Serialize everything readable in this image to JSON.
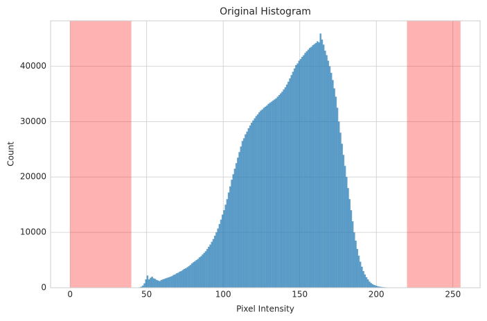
{
  "chart_data": {
    "type": "histogram",
    "title": "Original Histogram",
    "x_label": "Pixel Intensity",
    "y_label": "Count",
    "bins": [
      0,
      1,
      2,
      3,
      4,
      5,
      6,
      7,
      8,
      9,
      10,
      11,
      12,
      13,
      14,
      15,
      16,
      17,
      18,
      19,
      20,
      21,
      22,
      23,
      24,
      25,
      26,
      27,
      28,
      29,
      30,
      31,
      32,
      33,
      34,
      35,
      36,
      37,
      38,
      39,
      40,
      41,
      42,
      43,
      44,
      45,
      46,
      47,
      48,
      49,
      50,
      51,
      52,
      53,
      54,
      55,
      56,
      57,
      58,
      59,
      60,
      61,
      62,
      63,
      64,
      65,
      66,
      67,
      68,
      69,
      70,
      71,
      72,
      73,
      74,
      75,
      76,
      77,
      78,
      79,
      80,
      81,
      82,
      83,
      84,
      85,
      86,
      87,
      88,
      89,
      90,
      91,
      92,
      93,
      94,
      95,
      96,
      97,
      98,
      99,
      100,
      101,
      102,
      103,
      104,
      105,
      106,
      107,
      108,
      109,
      110,
      111,
      112,
      113,
      114,
      115,
      116,
      117,
      118,
      119,
      120,
      121,
      122,
      123,
      124,
      125,
      126,
      127,
      128,
      129,
      130,
      131,
      132,
      133,
      134,
      135,
      136,
      137,
      138,
      139,
      140,
      141,
      142,
      143,
      144,
      145,
      146,
      147,
      148,
      149,
      150,
      151,
      152,
      153,
      154,
      155,
      156,
      157,
      158,
      159,
      160,
      161,
      162,
      163,
      164,
      165,
      166,
      167,
      168,
      169,
      170,
      171,
      172,
      173,
      174,
      175,
      176,
      177,
      178,
      179,
      180,
      181,
      182,
      183,
      184,
      185,
      186,
      187,
      188,
      189,
      190,
      191,
      192,
      193,
      194,
      195,
      196,
      197,
      198,
      199,
      200,
      201,
      202,
      203,
      204,
      205,
      206,
      207,
      208,
      209,
      210,
      211,
      212,
      213,
      214,
      215,
      216,
      217,
      218,
      219,
      220,
      221,
      222,
      223,
      224,
      225,
      226,
      227,
      228,
      229,
      230,
      231,
      232,
      233,
      234,
      235,
      236,
      237,
      238,
      239,
      240,
      241,
      242,
      243,
      244,
      245,
      246,
      247,
      248,
      249,
      250,
      251,
      252,
      253,
      254,
      255,
      256
    ],
    "counts": [
      0,
      0,
      0,
      0,
      0,
      0,
      0,
      0,
      0,
      0,
      0,
      0,
      0,
      0,
      0,
      0,
      0,
      0,
      0,
      0,
      0,
      0,
      0,
      0,
      0,
      0,
      0,
      0,
      0,
      0,
      0,
      0,
      0,
      0,
      0,
      0,
      0,
      0,
      0,
      0,
      0,
      0,
      0,
      0,
      0,
      100,
      200,
      400,
      800,
      1500,
      2200,
      1500,
      1800,
      2000,
      1700,
      1600,
      1400,
      1300,
      1200,
      1400,
      1500,
      1600,
      1700,
      1800,
      1900,
      2000,
      2100,
      2300,
      2400,
      2600,
      2700,
      2900,
      3000,
      3200,
      3400,
      3500,
      3700,
      3900,
      4100,
      4400,
      4600,
      4800,
      5000,
      5200,
      5500,
      5700,
      6000,
      6300,
      6600,
      7000,
      7400,
      7800,
      8300,
      8800,
      9400,
      10000,
      10700,
      11500,
      12300,
      13200,
      14000,
      15000,
      16000,
      17200,
      18300,
      19500,
      20500,
      21500,
      22500,
      23500,
      24500,
      25500,
      26500,
      27000,
      27700,
      28200,
      28800,
      29300,
      29800,
      30200,
      30600,
      31000,
      31300,
      31700,
      32000,
      32200,
      32500,
      32700,
      32900,
      33200,
      33400,
      33600,
      33800,
      34000,
      34200,
      34500,
      34800,
      35100,
      35400,
      35800,
      36200,
      36700,
      37200,
      37800,
      38400,
      39000,
      39600,
      40200,
      40500,
      41000,
      41300,
      41700,
      42000,
      42400,
      42700,
      43000,
      43300,
      43500,
      43800,
      44000,
      44200,
      44500,
      44300,
      45900,
      44800,
      43900,
      42800,
      42000,
      41000,
      40000,
      38800,
      37500,
      36000,
      34500,
      32500,
      30000,
      28000,
      26000,
      24000,
      22000,
      20000,
      18000,
      16000,
      14000,
      12000,
      10000,
      8500,
      7000,
      5800,
      4700,
      3800,
      3000,
      2400,
      1900,
      1500,
      1100,
      850,
      650,
      500,
      400,
      300,
      230,
      180,
      140,
      110,
      90,
      70,
      60,
      50,
      40,
      30,
      20,
      15,
      10,
      5,
      3,
      0,
      0,
      0,
      0,
      0,
      0,
      0,
      0,
      0,
      0,
      0,
      0,
      0,
      0,
      0,
      0,
      0,
      0,
      0,
      0,
      0,
      0,
      0,
      0,
      0,
      0,
      0,
      0,
      0,
      0,
      0,
      0,
      0,
      0,
      0,
      0,
      0,
      0,
      0,
      0
    ],
    "color": "#1f77b4",
    "opacity": 0.7,
    "highlight_ranges": [
      [
        0,
        40
      ],
      [
        220,
        255
      ]
    ],
    "highlight_color": "#ff0000",
    "highlight_opacity": 0.3,
    "xlim": [
      -12.75,
      267.75
    ],
    "ylim": [
      0,
      48200
    ],
    "xticks": [
      0,
      50,
      100,
      150,
      200,
      250
    ],
    "yticks": [
      0,
      10000,
      20000,
      30000,
      40000
    ],
    "grid": true
  }
}
